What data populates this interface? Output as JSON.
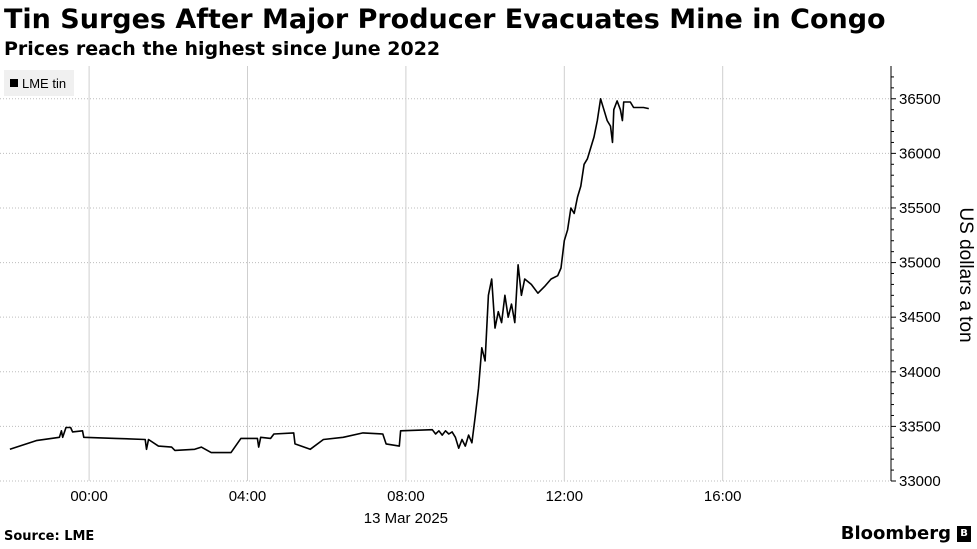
{
  "chart_data": {
    "type": "line",
    "title": "Tin Surges After Major Producer Evacuates Mine in Congo",
    "subtitle": "Prices reach the highest since June 2022",
    "ylabel": "US dollars a ton",
    "date_label": "13 Mar 2025",
    "source": "Source: LME",
    "brand": "Bloomberg",
    "brand_mark": "B",
    "ylim": [
      33000,
      36800
    ],
    "xlim": [
      "12 Mar 2025 21:45",
      "13 Mar 2025 20:15"
    ],
    "x_ticks": [
      "00:00",
      "04:00",
      "08:00",
      "12:00",
      "16:00"
    ],
    "y_ticks": [
      33000,
      33500,
      34000,
      34500,
      35000,
      35500,
      36000,
      36500
    ],
    "grid": true,
    "legend_position": "top-left",
    "line_color": "#000000",
    "series": [
      {
        "name": "LME tin",
        "points": [
          [
            "12 Mar 2025 22:00",
            33290
          ],
          [
            "12 Mar 2025 22:40",
            33370
          ],
          [
            "12 Mar 2025 23:15",
            33400
          ],
          [
            "12 Mar 2025 23:18",
            33460
          ],
          [
            "12 Mar 2025 23:20",
            33400
          ],
          [
            "12 Mar 2025 23:25",
            33490
          ],
          [
            "12 Mar 2025 23:32",
            33490
          ],
          [
            "12 Mar 2025 23:35",
            33450
          ],
          [
            "12 Mar 2025 23:50",
            33460
          ],
          [
            "12 Mar 2025 23:52",
            33400
          ],
          [
            "13 Mar 2025 00:40",
            33390
          ],
          [
            "13 Mar 2025 01:25",
            33380
          ],
          [
            "13 Mar 2025 01:27",
            33290
          ],
          [
            "13 Mar 2025 01:30",
            33380
          ],
          [
            "13 Mar 2025 01:45",
            33320
          ],
          [
            "13 Mar 2025 02:05",
            33310
          ],
          [
            "13 Mar 2025 02:10",
            33280
          ],
          [
            "13 Mar 2025 02:40",
            33290
          ],
          [
            "13 Mar 2025 02:50",
            33310
          ],
          [
            "13 Mar 2025 03:05",
            33260
          ],
          [
            "13 Mar 2025 03:35",
            33260
          ],
          [
            "13 Mar 2025 03:50",
            33390
          ],
          [
            "13 Mar 2025 04:15",
            33390
          ],
          [
            "13 Mar 2025 04:17",
            33310
          ],
          [
            "13 Mar 2025 04:20",
            33400
          ],
          [
            "13 Mar 2025 04:35",
            33390
          ],
          [
            "13 Mar 2025 04:40",
            33430
          ],
          [
            "13 Mar 2025 05:10",
            33440
          ],
          [
            "13 Mar 2025 05:12",
            33340
          ],
          [
            "13 Mar 2025 05:35",
            33290
          ],
          [
            "13 Mar 2025 05:55",
            33380
          ],
          [
            "13 Mar 2025 06:25",
            33400
          ],
          [
            "13 Mar 2025 06:55",
            33440
          ],
          [
            "13 Mar 2025 07:25",
            33430
          ],
          [
            "13 Mar 2025 07:30",
            33340
          ],
          [
            "13 Mar 2025 07:50",
            33320
          ],
          [
            "13 Mar 2025 07:52",
            33460
          ],
          [
            "13 Mar 2025 08:40",
            33470
          ],
          [
            "13 Mar 2025 08:45",
            33430
          ],
          [
            "13 Mar 2025 08:50",
            33460
          ],
          [
            "13 Mar 2025 08:55",
            33420
          ],
          [
            "13 Mar 2025 09:00",
            33460
          ],
          [
            "13 Mar 2025 09:05",
            33430
          ],
          [
            "13 Mar 2025 09:10",
            33450
          ],
          [
            "13 Mar 2025 09:15",
            33400
          ],
          [
            "13 Mar 2025 09:20",
            33300
          ],
          [
            "13 Mar 2025 09:25",
            33380
          ],
          [
            "13 Mar 2025 09:30",
            33320
          ],
          [
            "13 Mar 2025 09:35",
            33420
          ],
          [
            "13 Mar 2025 09:40",
            33350
          ],
          [
            "13 Mar 2025 09:45",
            33590
          ],
          [
            "13 Mar 2025 09:50",
            33850
          ],
          [
            "13 Mar 2025 09:55",
            34220
          ],
          [
            "13 Mar 2025 10:00",
            34100
          ],
          [
            "13 Mar 2025 10:05",
            34700
          ],
          [
            "13 Mar 2025 10:10",
            34850
          ],
          [
            "13 Mar 2025 10:15",
            34400
          ],
          [
            "13 Mar 2025 10:20",
            34550
          ],
          [
            "13 Mar 2025 10:25",
            34450
          ],
          [
            "13 Mar 2025 10:30",
            34700
          ],
          [
            "13 Mar 2025 10:35",
            34500
          ],
          [
            "13 Mar 2025 10:40",
            34620
          ],
          [
            "13 Mar 2025 10:45",
            34450
          ],
          [
            "13 Mar 2025 10:50",
            34980
          ],
          [
            "13 Mar 2025 10:55",
            34700
          ],
          [
            "13 Mar 2025 11:00",
            34850
          ],
          [
            "13 Mar 2025 11:10",
            34800
          ],
          [
            "13 Mar 2025 11:20",
            34720
          ],
          [
            "13 Mar 2025 11:30",
            34780
          ],
          [
            "13 Mar 2025 11:40",
            34850
          ],
          [
            "13 Mar 2025 11:50",
            34880
          ],
          [
            "13 Mar 2025 11:55",
            34950
          ],
          [
            "13 Mar 2025 12:00",
            35200
          ],
          [
            "13 Mar 2025 12:05",
            35300
          ],
          [
            "13 Mar 2025 12:10",
            35500
          ],
          [
            "13 Mar 2025 12:15",
            35450
          ],
          [
            "13 Mar 2025 12:20",
            35600
          ],
          [
            "13 Mar 2025 12:25",
            35700
          ],
          [
            "13 Mar 2025 12:30",
            35900
          ],
          [
            "13 Mar 2025 12:35",
            35950
          ],
          [
            "13 Mar 2025 12:40",
            36050
          ],
          [
            "13 Mar 2025 12:45",
            36150
          ],
          [
            "13 Mar 2025 12:50",
            36300
          ],
          [
            "13 Mar 2025 12:55",
            36500
          ],
          [
            "13 Mar 2025 13:00",
            36400
          ],
          [
            "13 Mar 2025 13:05",
            36300
          ],
          [
            "13 Mar 2025 13:10",
            36250
          ],
          [
            "13 Mar 2025 13:13",
            36100
          ],
          [
            "13 Mar 2025 13:15",
            36400
          ],
          [
            "13 Mar 2025 13:20",
            36480
          ],
          [
            "13 Mar 2025 13:25",
            36400
          ],
          [
            "13 Mar 2025 13:28",
            36300
          ],
          [
            "13 Mar 2025 13:30",
            36470
          ],
          [
            "13 Mar 2025 13:40",
            36470
          ],
          [
            "13 Mar 2025 13:45",
            36420
          ],
          [
            "13 Mar 2025 13:50",
            36420
          ],
          [
            "13 Mar 2025 14:00",
            36420
          ],
          [
            "13 Mar 2025 14:08",
            36410
          ]
        ]
      }
    ]
  }
}
